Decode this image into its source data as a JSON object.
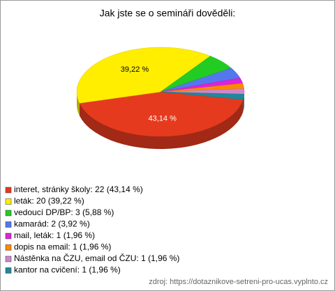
{
  "chart_data": {
    "type": "pie",
    "title": "Jak jste se o semináři dověděli:",
    "categories": [
      "interet, stránky školy: 22 (43,14 %)",
      "leták: 20 (39,22 %)",
      "vedoucí DP/BP: 3 (5,88 %)",
      "kamarád: 2 (3,92 %)",
      "mail, leták: 1 (1,96 %)",
      "dopis na email: 1 (1,96 %)",
      "Nástěnka na ČZU, email od ČZU: 1 (1,96 %)",
      "kantor na cvičení: 1 (1,96 %)"
    ],
    "values": [
      43.14,
      39.22,
      5.88,
      3.92,
      1.96,
      1.96,
      1.96,
      1.96
    ],
    "value_labels": [
      "43,14 %",
      "39,22 %",
      null,
      null,
      null,
      null,
      null,
      null
    ],
    "colors": [
      "#e63a1e",
      "#ffee00",
      "#22cc22",
      "#5577ee",
      "#dd22dd",
      "#ff8800",
      "#cc88cc",
      "#228899"
    ],
    "legend": "bottom-left",
    "source": "zdroj: https://dotaznikove-setreni-pro-ucas.vyplnto.cz"
  }
}
